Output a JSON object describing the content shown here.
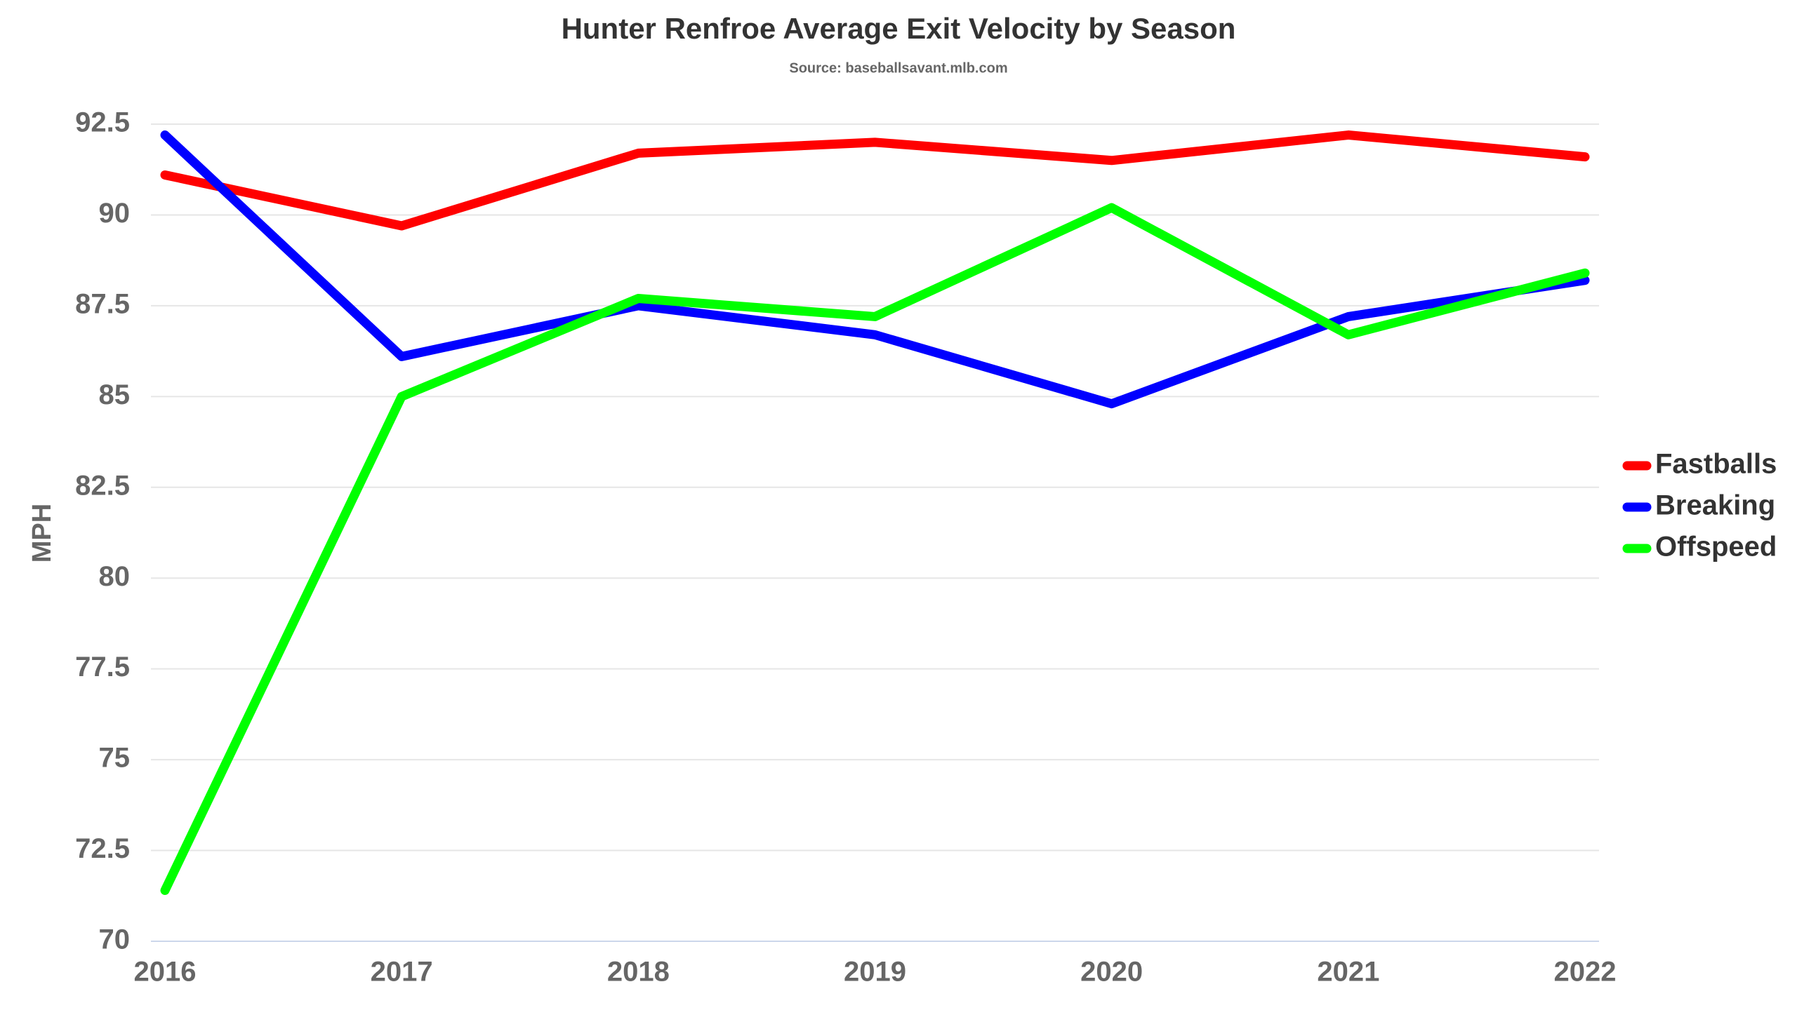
{
  "chart_data": {
    "type": "line",
    "title": "Hunter Renfroe Average Exit Velocity by Season",
    "subtitle": "Source: baseballsavant.mlb.com",
    "y_label": "MPH",
    "categories": [
      "2016",
      "2017",
      "2018",
      "2019",
      "2020",
      "2021",
      "2022"
    ],
    "series": [
      {
        "name": "Fastballs",
        "color": "#ff0000",
        "values": [
          91.1,
          89.7,
          91.7,
          92.0,
          91.5,
          92.2,
          91.6
        ]
      },
      {
        "name": "Breaking",
        "color": "#0000ff",
        "values": [
          92.2,
          86.1,
          87.5,
          86.7,
          84.8,
          87.2,
          88.2
        ]
      },
      {
        "name": "Offspeed",
        "color": "#00ff00",
        "values": [
          71.4,
          85.0,
          87.7,
          87.2,
          90.2,
          86.7,
          88.4
        ]
      }
    ],
    "ylim": [
      70,
      92.5
    ],
    "yticks": [
      70,
      72.5,
      75,
      77.5,
      80,
      82.5,
      85,
      87.5,
      90,
      92.5
    ],
    "grid": true,
    "legend": "right"
  }
}
